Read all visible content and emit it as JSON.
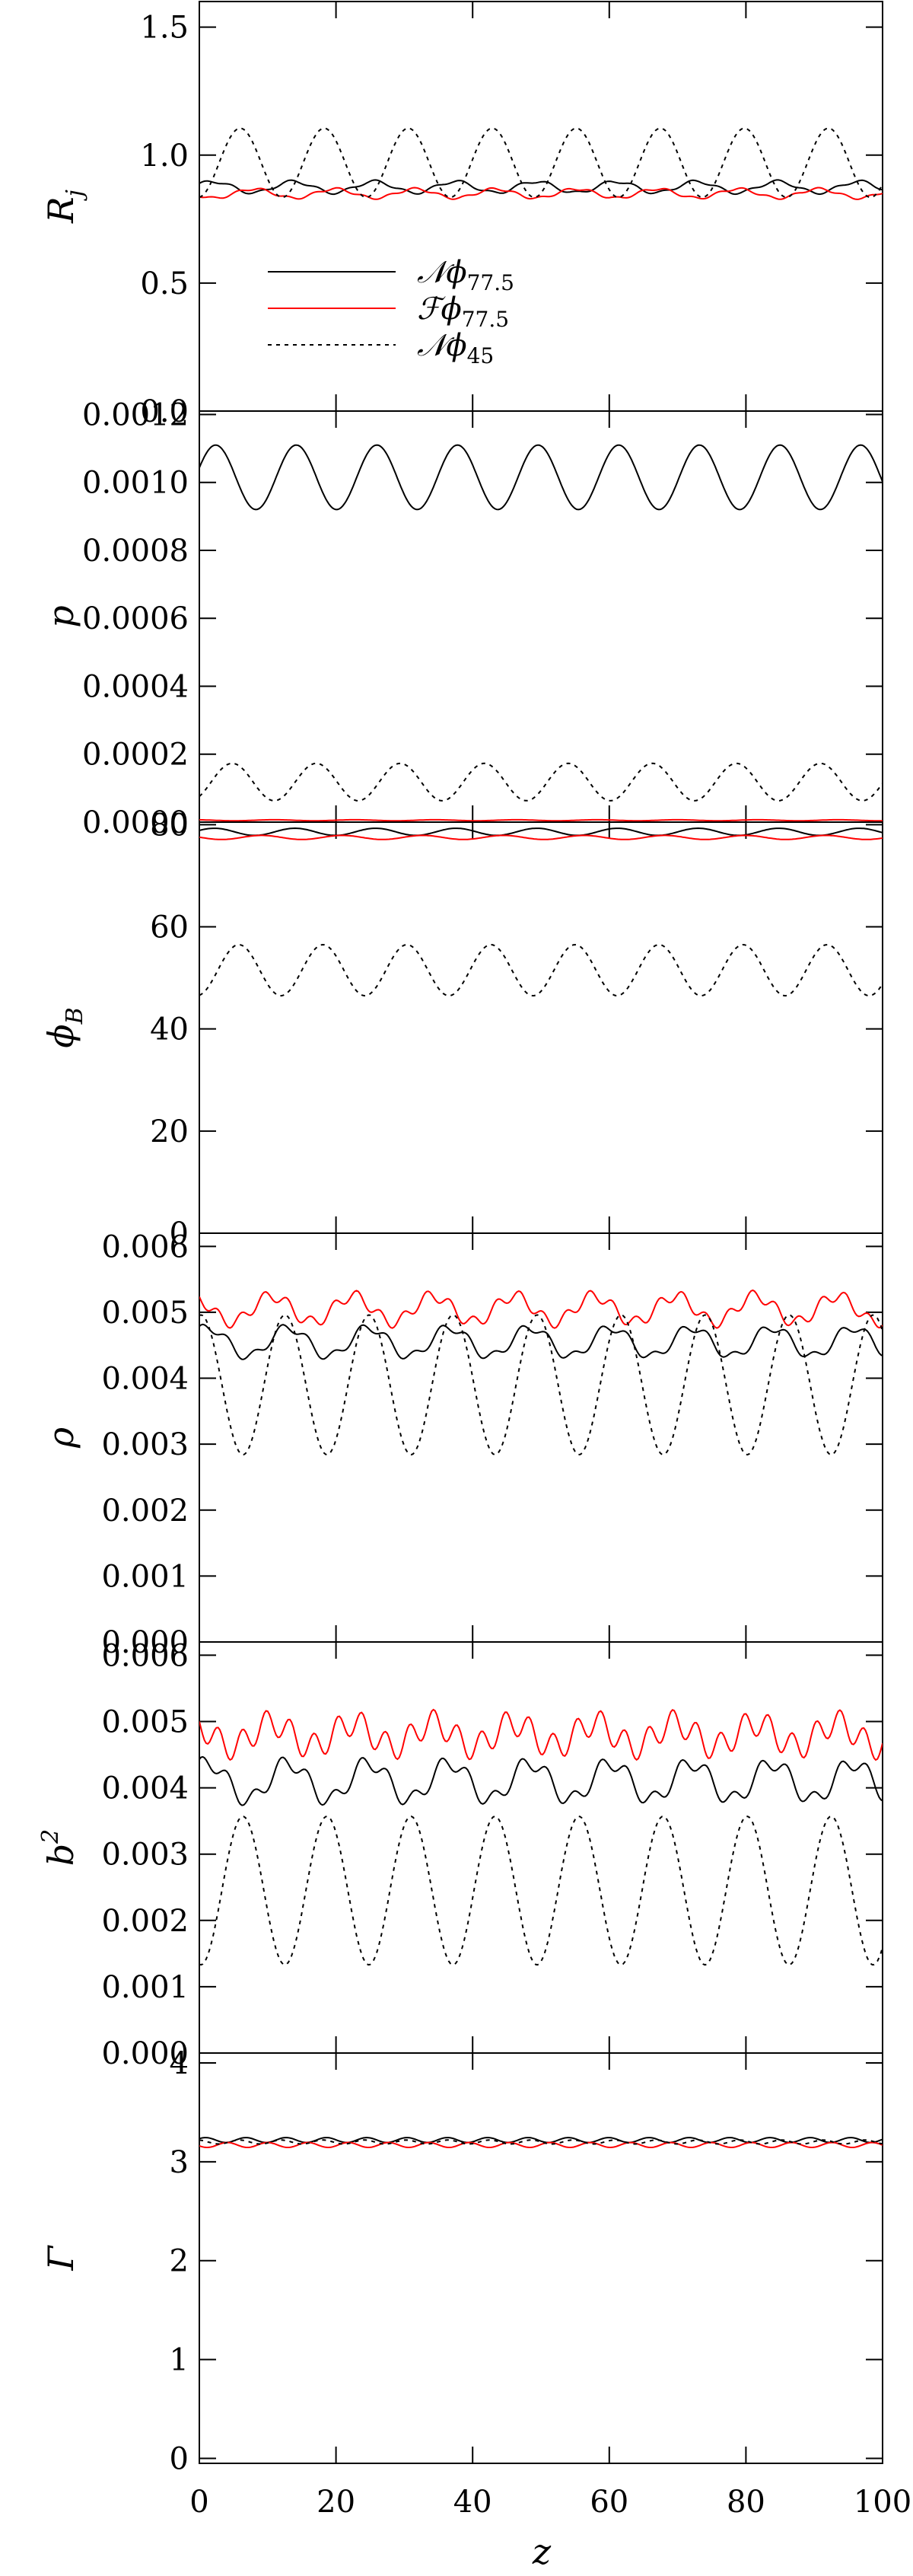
{
  "chart_data": {
    "type": "line",
    "xlabel": "z",
    "xlim": [
      0,
      100
    ],
    "xticks": [
      "0",
      "20",
      "40",
      "60",
      "80",
      "100"
    ],
    "legend": {
      "placement": "lower-left of first panel",
      "entries": [
        {
          "script": "𝒩",
          "symbol": "ϕ",
          "sub": "77.5",
          "color": "#000000",
          "style": "solid"
        },
        {
          "script": "ℱ",
          "symbol": "ϕ",
          "sub": "77.5",
          "color": "#ff0000",
          "style": "solid"
        },
        {
          "script": "𝒩",
          "symbol": "ϕ",
          "sub": "45",
          "color": "#000000",
          "style": "dotted"
        }
      ]
    },
    "panels": [
      {
        "ylabel": "R",
        "ylabel_sub": "j",
        "ylim": [
          0,
          1.6
        ],
        "yticks": [
          {
            "v": 0.0,
            "t": "0.0"
          },
          {
            "v": 0.5,
            "t": "0.5"
          },
          {
            "v": 1.0,
            "t": "1.0"
          },
          {
            "v": 1.5,
            "t": "1.5"
          }
        ],
        "series": [
          {
            "legend_index": 0,
            "mean": 0.875,
            "amp": 0.022,
            "period": 11.8,
            "phase": 0.5,
            "amp2": 0.006,
            "period2": 4.2
          },
          {
            "legend_index": 1,
            "mean": 0.85,
            "amp": 0.018,
            "period": 11.8,
            "phase": 3.6,
            "amp2": 0.005,
            "period2": 3.7
          },
          {
            "legend_index": 2,
            "mean": 0.97,
            "amp": 0.135,
            "period": 12.3,
            "phase": 4.8
          }
        ]
      },
      {
        "ylabel": "p",
        "ylim": [
          0,
          0.00121
        ],
        "yticks": [
          {
            "v": 0,
            "t": "0.0000"
          },
          {
            "v": 0.0002,
            "t": "0.0002"
          },
          {
            "v": 0.0004,
            "t": "0.0004"
          },
          {
            "v": 0.0006,
            "t": "0.0006"
          },
          {
            "v": 0.0008,
            "t": "0.0008"
          },
          {
            "v": 0.001,
            "t": "0.0010"
          },
          {
            "v": 0.0012,
            "t": "0.0012"
          }
        ],
        "series": [
          {
            "legend_index": 0,
            "mean": 0.001015,
            "amp": 9.5e-05,
            "period": 11.8,
            "phase": 0.3
          },
          {
            "legend_index": 1,
            "mean": 5.5e-06,
            "amp": 1.5e-06,
            "period": 11.8,
            "phase": 2.0
          },
          {
            "legend_index": 2,
            "mean": 0.000118,
            "amp": 5.5e-05,
            "period": 12.3,
            "phase": 5.4
          }
        ]
      },
      {
        "ylabel": "ϕ",
        "ylabel_sub": "B",
        "ylim": [
          0,
          80.5
        ],
        "yticks": [
          {
            "v": 0,
            "t": "0"
          },
          {
            "v": 20,
            "t": "20"
          },
          {
            "v": 40,
            "t": "40"
          },
          {
            "v": 60,
            "t": "60"
          },
          {
            "v": 80,
            "t": "80"
          }
        ],
        "series": [
          {
            "legend_index": 0,
            "mean": 78.6,
            "amp": 0.7,
            "period": 11.8,
            "phase": 0.4
          },
          {
            "legend_index": 1,
            "mean": 77.5,
            "amp": 0.4,
            "period": 11.8,
            "phase": 3.0
          },
          {
            "legend_index": 2,
            "mean": 51.5,
            "amp": 5.0,
            "period": 12.3,
            "phase": 4.9
          }
        ]
      },
      {
        "ylabel": "ρ",
        "ylim": [
          0,
          0.0062
        ],
        "yticks": [
          {
            "v": 0,
            "t": "0.000"
          },
          {
            "v": 0.001,
            "t": "0.001"
          },
          {
            "v": 0.002,
            "t": "0.002"
          },
          {
            "v": 0.003,
            "t": "0.003"
          },
          {
            "v": 0.004,
            "t": "0.004"
          },
          {
            "v": 0.005,
            "t": "0.005"
          },
          {
            "v": 0.006,
            "t": "0.006"
          }
        ],
        "series": [
          {
            "legend_index": 0,
            "mean": 0.00455,
            "amp": 0.00022,
            "period": 11.8,
            "phase": 0.9,
            "amp2": 7e-05,
            "period2": 3.9
          },
          {
            "legend_index": 1,
            "mean": 0.00505,
            "amp": 0.0002,
            "period": 11.8,
            "phase": 2.2,
            "amp2": 9e-05,
            "period2": 3.4
          },
          {
            "legend_index": 2,
            "mean": 0.0039,
            "amp": 0.00106,
            "period": 12.3,
            "phase": 1.45
          }
        ]
      },
      {
        "ylabel": "b",
        "ylabel_sup": "2",
        "ylim": [
          0,
          0.0062
        ],
        "yticks": [
          {
            "v": 0,
            "t": "0.000"
          },
          {
            "v": 0.001,
            "t": "0.001"
          },
          {
            "v": 0.002,
            "t": "0.002"
          },
          {
            "v": 0.003,
            "t": "0.003"
          },
          {
            "v": 0.004,
            "t": "0.004"
          },
          {
            "v": 0.005,
            "t": "0.005"
          },
          {
            "v": 0.006,
            "t": "0.006"
          }
        ],
        "series": [
          {
            "legend_index": 0,
            "mean": 0.0041,
            "amp": 0.00028,
            "period": 11.8,
            "phase": 0.9,
            "amp2": 0.00012,
            "period2": 3.9
          },
          {
            "legend_index": 1,
            "mean": 0.0048,
            "amp": 0.00018,
            "period": 11.8,
            "phase": 2.2,
            "amp2": 0.0002,
            "period2": 3.5
          },
          {
            "legend_index": 2,
            "mean": 0.00245,
            "amp": 0.00112,
            "period": 12.3,
            "phase": 4.6
          }
        ]
      },
      {
        "ylabel": "Γ",
        "ylim": [
          -0.05,
          4.1
        ],
        "yticks": [
          {
            "v": 0,
            "t": "0"
          },
          {
            "v": 1,
            "t": "1"
          },
          {
            "v": 2,
            "t": "2"
          },
          {
            "v": 3,
            "t": "3"
          },
          {
            "v": 4,
            "t": "4"
          }
        ],
        "series": [
          {
            "legend_index": 0,
            "mean": 3.22,
            "amp": 0.025,
            "period": 5.9,
            "phase": 0.6
          },
          {
            "legend_index": 1,
            "mean": 3.17,
            "amp": 0.025,
            "period": 5.9,
            "phase": 3.5
          },
          {
            "legend_index": 2,
            "mean": 3.2,
            "amp": 0.02,
            "period": 6.1,
            "phase": 1.8
          }
        ]
      }
    ]
  }
}
